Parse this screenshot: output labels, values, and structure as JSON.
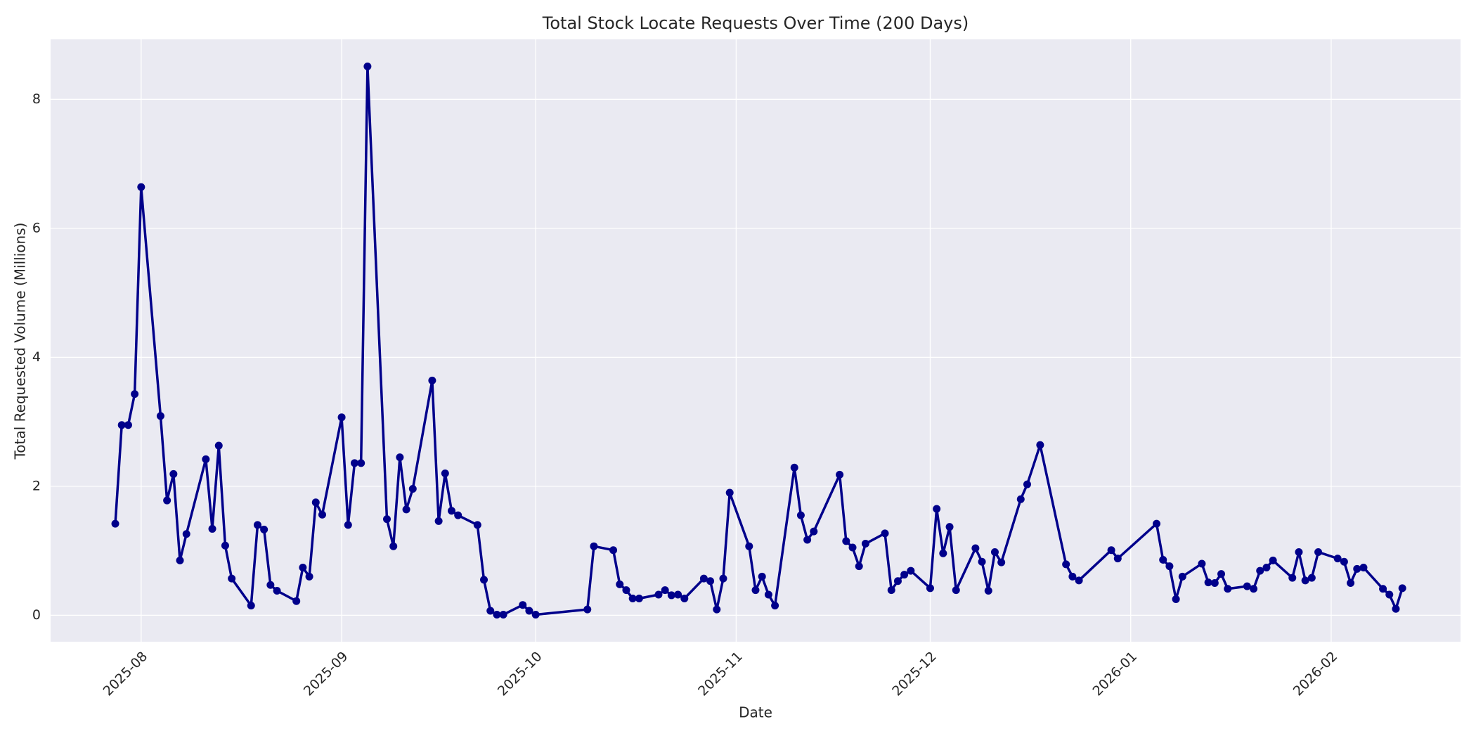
{
  "chart_data": {
    "type": "line",
    "title": "Total Stock Locate Requests Over Time (200 Days)",
    "xlabel": "Date",
    "ylabel": "Total Requested Volume (Millions)",
    "x": [
      "2025-07-28",
      "2025-07-29",
      "2025-07-30",
      "2025-07-31",
      "2025-08-01",
      "2025-08-04",
      "2025-08-05",
      "2025-08-06",
      "2025-08-07",
      "2025-08-08",
      "2025-08-11",
      "2025-08-12",
      "2025-08-13",
      "2025-08-14",
      "2025-08-15",
      "2025-08-18",
      "2025-08-19",
      "2025-08-20",
      "2025-08-21",
      "2025-08-22",
      "2025-08-25",
      "2025-08-26",
      "2025-08-27",
      "2025-08-28",
      "2025-08-29",
      "2025-09-01",
      "2025-09-02",
      "2025-09-03",
      "2025-09-04",
      "2025-09-05",
      "2025-09-08",
      "2025-09-09",
      "2025-09-10",
      "2025-09-11",
      "2025-09-12",
      "2025-09-15",
      "2025-09-16",
      "2025-09-17",
      "2025-09-18",
      "2025-09-19",
      "2025-09-22",
      "2025-09-23",
      "2025-09-24",
      "2025-09-25",
      "2025-09-26",
      "2025-09-29",
      "2025-09-30",
      "2025-10-01",
      "2025-10-09",
      "2025-10-10",
      "2025-10-13",
      "2025-10-14",
      "2025-10-15",
      "2025-10-16",
      "2025-10-17",
      "2025-10-20",
      "2025-10-21",
      "2025-10-22",
      "2025-10-23",
      "2025-10-24",
      "2025-10-27",
      "2025-10-28",
      "2025-10-29",
      "2025-10-30",
      "2025-10-31",
      "2025-11-03",
      "2025-11-04",
      "2025-11-05",
      "2025-11-06",
      "2025-11-07",
      "2025-11-10",
      "2025-11-11",
      "2025-11-12",
      "2025-11-13",
      "2025-11-17",
      "2025-11-18",
      "2025-11-19",
      "2025-11-20",
      "2025-11-21",
      "2025-11-24",
      "2025-11-25",
      "2025-11-26",
      "2025-11-27",
      "2025-11-28",
      "2025-12-01",
      "2025-12-02",
      "2025-12-03",
      "2025-12-04",
      "2025-12-05",
      "2025-12-08",
      "2025-12-09",
      "2025-12-10",
      "2025-12-11",
      "2025-12-12",
      "2025-12-15",
      "2025-12-16",
      "2025-12-18",
      "2025-12-22",
      "2025-12-23",
      "2025-12-24",
      "2025-12-29",
      "2025-12-30",
      "2026-01-05",
      "2026-01-06",
      "2026-01-07",
      "2026-01-08",
      "2026-01-09",
      "2026-01-12",
      "2026-01-13",
      "2026-01-14",
      "2026-01-15",
      "2026-01-16",
      "2026-01-19",
      "2026-01-20",
      "2026-01-21",
      "2026-01-22",
      "2026-01-23",
      "2026-01-26",
      "2026-01-27",
      "2026-01-28",
      "2026-01-29",
      "2026-01-30",
      "2026-02-02",
      "2026-02-03",
      "2026-02-04",
      "2026-02-05",
      "2026-02-06",
      "2026-02-09",
      "2026-02-10",
      "2026-02-11",
      "2026-02-12"
    ],
    "values": [
      1.42,
      2.95,
      2.95,
      3.43,
      6.64,
      3.09,
      1.78,
      2.19,
      0.85,
      1.26,
      2.42,
      1.34,
      2.63,
      1.08,
      0.57,
      0.15,
      1.4,
      1.33,
      0.47,
      0.38,
      0.22,
      0.74,
      0.6,
      1.75,
      1.56,
      3.07,
      1.4,
      2.36,
      2.36,
      8.51,
      1.49,
      1.07,
      2.45,
      1.64,
      1.96,
      3.64,
      1.46,
      2.2,
      1.62,
      1.55,
      1.4,
      0.55,
      0.07,
      0.01,
      0.01,
      0.16,
      0.07,
      0.01,
      0.09,
      1.07,
      1.01,
      0.48,
      0.39,
      0.26,
      0.26,
      0.32,
      0.39,
      0.31,
      0.32,
      0.26,
      0.57,
      0.53,
      0.09,
      0.57,
      1.9,
      1.07,
      0.39,
      0.6,
      0.32,
      0.15,
      2.29,
      1.55,
      1.17,
      1.3,
      2.18,
      1.15,
      1.05,
      0.76,
      1.11,
      1.27,
      0.39,
      0.53,
      0.63,
      0.69,
      0.42,
      1.65,
      0.96,
      1.37,
      0.39,
      1.04,
      0.83,
      0.38,
      0.98,
      0.82,
      1.8,
      2.03,
      2.64,
      0.79,
      0.6,
      0.54,
      1.01,
      0.88,
      1.42,
      0.86,
      0.76,
      0.25,
      0.6,
      0.8,
      0.51,
      0.5,
      0.64,
      0.41,
      0.45,
      0.41,
      0.69,
      0.74,
      0.85,
      0.58,
      0.98,
      0.54,
      0.58,
      0.98,
      0.88,
      0.83,
      0.5,
      0.72,
      0.74,
      0.41,
      0.32,
      0.1,
      0.42
    ],
    "color": "#00008b",
    "xlim": [
      "2025-07-18",
      "2026-02-21"
    ],
    "xticks": [
      "2025-08",
      "2025-09",
      "2025-10",
      "2025-11",
      "2025-12",
      "2026-01",
      "2026-02"
    ],
    "ylim": [
      -0.41,
      8.93
    ],
    "yticks": [
      0,
      2,
      4,
      6,
      8
    ],
    "grid": true
  }
}
